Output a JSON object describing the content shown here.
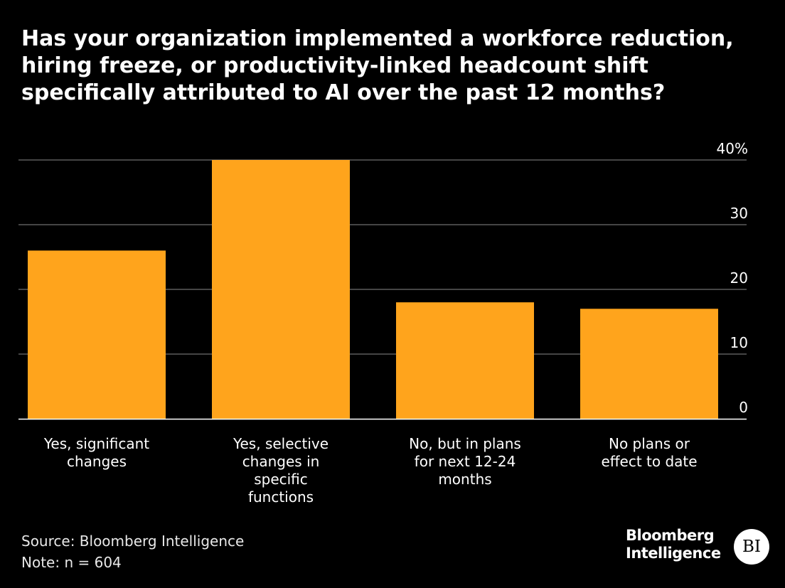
{
  "chart_data": {
    "type": "bar",
    "title_lines": [
      "Has your organization implemented a workforce reduction,",
      "hiring freeze, or productivity-linked headcount shift",
      "specifically attributed to AI over the past 12 months?"
    ],
    "categories": [
      [
        "Yes, significant",
        "changes"
      ],
      [
        "Yes, selective",
        "changes in",
        "specific",
        "functions"
      ],
      [
        "No, but in plans",
        "for next 12-24",
        "months"
      ],
      [
        "No plans or",
        "effect to date"
      ]
    ],
    "values": [
      26,
      40,
      18,
      17
    ],
    "ylim": [
      0,
      40
    ],
    "yticks": [
      0,
      10,
      20,
      30,
      40
    ],
    "ytick_labels": [
      "0",
      "10",
      "20",
      "30",
      "40%"
    ],
    "grid": true,
    "bar_color": "#FFA41C"
  },
  "footer": {
    "source": "Source: Bloomberg Intelligence",
    "note": "Note: n = 604"
  },
  "brand": {
    "line1": "Bloomberg",
    "line2": "Intelligence",
    "badge": "BI"
  }
}
